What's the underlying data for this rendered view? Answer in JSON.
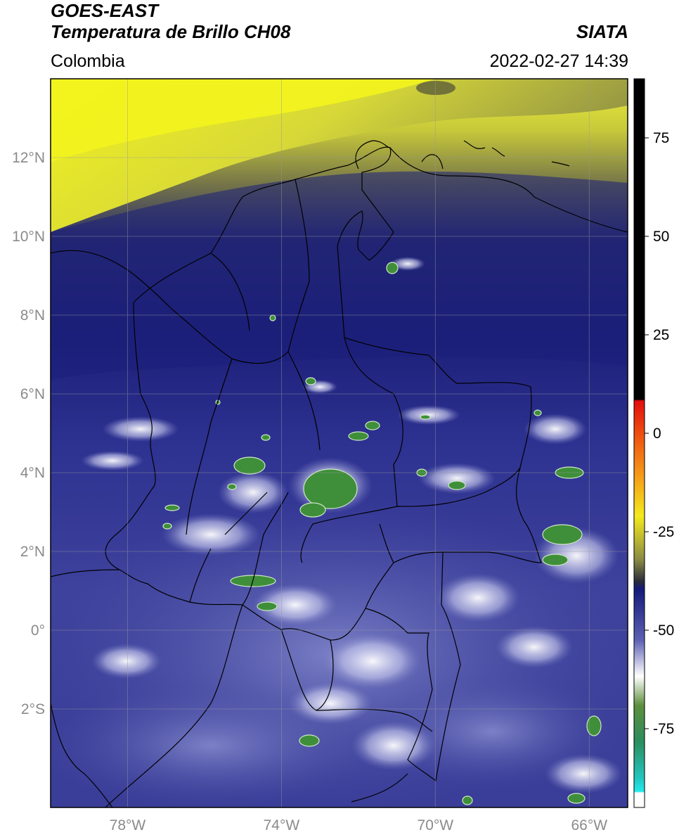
{
  "header": {
    "satellite": "GOES-EAST",
    "product": "Temperatura de Brillo CH08",
    "region": "Colombia",
    "organization": "SIATA",
    "datetime": "2022-02-27 14:39"
  },
  "map": {
    "lon_range": [
      -80,
      -65
    ],
    "lat_range": [
      -4.5,
      14
    ],
    "lat_ticks": [
      {
        "value": 12,
        "label": "12°N"
      },
      {
        "value": 10,
        "label": "10°N"
      },
      {
        "value": 8,
        "label": "8°N"
      },
      {
        "value": 6,
        "label": "6°N"
      },
      {
        "value": 4,
        "label": "4°N"
      },
      {
        "value": 2,
        "label": "2°N"
      },
      {
        "value": 0,
        "label": "0°"
      },
      {
        "value": -2,
        "label": "2°S"
      }
    ],
    "lon_ticks": [
      {
        "value": -78,
        "label": "78°W"
      },
      {
        "value": -74,
        "label": "74°W"
      },
      {
        "value": -70,
        "label": "70°W"
      },
      {
        "value": -66,
        "label": "66°W"
      }
    ],
    "colors": {
      "cold_high": "#e7ea1c",
      "mid_olive": "#8a8c3a",
      "deep_blue": "#1b1f78",
      "blue": "#3b3f9a",
      "light_blue": "#7b80c4",
      "white": "#ffffff",
      "green": "#3f8f3a",
      "teal": "#2a9e86"
    }
  },
  "colorbar": {
    "ticks": [
      {
        "value": 75,
        "label": "75"
      },
      {
        "value": 50,
        "label": "50"
      },
      {
        "value": 25,
        "label": "25"
      },
      {
        "value": 0,
        "label": "0"
      },
      {
        "value": -25,
        "label": "-25"
      },
      {
        "value": -50,
        "label": "-50"
      },
      {
        "value": -75,
        "label": "-75"
      }
    ],
    "range": [
      -95,
      90
    ]
  }
}
